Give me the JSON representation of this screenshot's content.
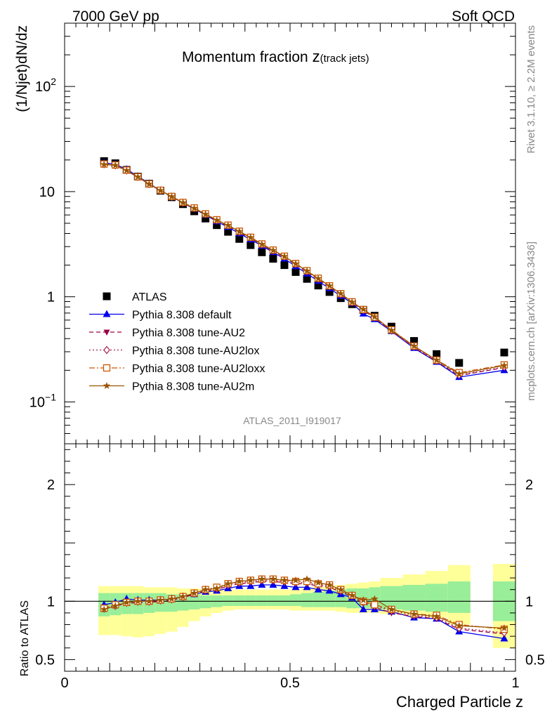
{
  "header": {
    "left": "7000 GeV pp",
    "right": "Soft QCD"
  },
  "side_labels": {
    "rivet": "Rivet 3.1.10, ≥ 2.2M events",
    "mcplots": "mcplots.cern.ch [arXiv:1306.3436]"
  },
  "chart_data": [
    {
      "type": "line",
      "title_main": "Momentum fraction ",
      "title_sym": "z",
      "title_sub": "(track jets)",
      "ylabel": "(1/Njet)dN/dz",
      "watermark": "ATLAS_2011_I919017",
      "yscale": "log",
      "ylim": [
        0.04,
        400
      ],
      "xlim": [
        0,
        1
      ],
      "grid": false,
      "legend_position": "lower-left",
      "y_ticks": [
        {
          "value": 100,
          "label": "10",
          "sup": "2"
        },
        {
          "value": 10,
          "label": "10",
          "sup": ""
        },
        {
          "value": 1,
          "label": "1",
          "sup": ""
        },
        {
          "value": 0.1,
          "label": "10",
          "sup": "−1"
        }
      ],
      "x": [
        0.0875,
        0.1125,
        0.1375,
        0.1625,
        0.1875,
        0.2125,
        0.2375,
        0.2625,
        0.2875,
        0.3125,
        0.3375,
        0.3625,
        0.3875,
        0.4125,
        0.4375,
        0.4625,
        0.4875,
        0.5125,
        0.5375,
        0.5625,
        0.5875,
        0.6125,
        0.6375,
        0.6625,
        0.6875,
        0.725,
        0.775,
        0.825,
        0.875,
        0.975
      ],
      "series": [
        {
          "name": "ATLAS",
          "color": "#000000",
          "marker": "square",
          "style": "none",
          "values": [
            19.5,
            18.6,
            16.1,
            13.9,
            11.9,
            10.2,
            8.85,
            7.6,
            6.5,
            5.55,
            4.8,
            4.15,
            3.55,
            3.1,
            2.65,
            2.3,
            2.0,
            1.72,
            1.48,
            1.28,
            1.11,
            0.97,
            0.85,
            0.75,
            0.66,
            0.52,
            0.38,
            0.285,
            0.235,
            0.295
          ]
        },
        {
          "name": "Pythia 8.308 default",
          "color": "#0000ee",
          "marker": "triangle-up",
          "style": "solid",
          "values": [
            18.8,
            18.2,
            16.3,
            14.0,
            11.95,
            10.25,
            8.95,
            7.8,
            6.85,
            6.0,
            5.2,
            4.6,
            4.0,
            3.5,
            3.05,
            2.65,
            2.3,
            1.95,
            1.66,
            1.41,
            1.2,
            1.02,
            0.87,
            0.69,
            0.61,
            0.47,
            0.325,
            0.24,
            0.172,
            0.2
          ]
        },
        {
          "name": "Pythia 8.308 tune-AU2",
          "color": "#990044",
          "marker": "triangle-down",
          "style": "dashed",
          "values": [
            18.0,
            17.7,
            15.8,
            13.7,
            11.75,
            10.2,
            8.9,
            7.8,
            6.9,
            6.05,
            5.3,
            4.7,
            4.1,
            3.6,
            3.12,
            2.72,
            2.37,
            2.02,
            1.72,
            1.46,
            1.24,
            1.05,
            0.88,
            0.74,
            0.63,
            0.47,
            0.33,
            0.242,
            0.178,
            0.212
          ]
        },
        {
          "name": "Pythia 8.308 tune-AU2lox",
          "color": "#aa2255",
          "marker": "diamond",
          "style": "dotted",
          "values": [
            18.2,
            17.8,
            15.9,
            13.8,
            11.8,
            10.25,
            8.95,
            7.85,
            6.95,
            6.1,
            5.35,
            4.75,
            4.15,
            3.65,
            3.15,
            2.75,
            2.4,
            2.05,
            1.75,
            1.48,
            1.26,
            1.06,
            0.89,
            0.75,
            0.635,
            0.48,
            0.335,
            0.245,
            0.18,
            0.215
          ]
        },
        {
          "name": "Pythia 8.308 tune-AU2loxx",
          "color": "#cc5500",
          "marker": "square-open",
          "style": "dashdot",
          "values": [
            18.3,
            17.9,
            16.0,
            13.85,
            11.85,
            10.3,
            9.0,
            7.9,
            7.0,
            6.15,
            5.4,
            4.8,
            4.2,
            3.68,
            3.18,
            2.78,
            2.43,
            2.07,
            1.77,
            1.5,
            1.27,
            1.07,
            0.895,
            0.755,
            0.64,
            0.485,
            0.34,
            0.25,
            0.19,
            0.225
          ]
        },
        {
          "name": "Pythia 8.308 tune-AU2m",
          "color": "#995500",
          "marker": "star",
          "style": "solid",
          "values": [
            18.1,
            17.8,
            15.9,
            13.8,
            11.8,
            10.25,
            8.95,
            7.85,
            6.95,
            6.1,
            5.35,
            4.78,
            4.18,
            3.66,
            3.16,
            2.76,
            2.42,
            2.06,
            1.76,
            1.49,
            1.27,
            1.07,
            0.89,
            0.76,
            0.645,
            0.48,
            0.34,
            0.25,
            0.185,
            0.222
          ]
        }
      ]
    },
    {
      "type": "line",
      "ylabel": "Ratio to ATLAS",
      "xlabel": "Charged Particle z",
      "ylim": [
        0.4,
        2.35
      ],
      "xlim": [
        0,
        1
      ],
      "y_ticks": [
        {
          "value": 2,
          "label": "2"
        },
        {
          "value": 1,
          "label": "1"
        },
        {
          "value": 0.5,
          "label": "0.5"
        }
      ],
      "x_ticks": [
        {
          "value": 0,
          "label": "0"
        },
        {
          "value": 0.5,
          "label": "0.5"
        },
        {
          "value": 1,
          "label": "1"
        }
      ],
      "band_edges": [
        0.075,
        0.1,
        0.125,
        0.15,
        0.175,
        0.2,
        0.225,
        0.25,
        0.275,
        0.3,
        0.325,
        0.35,
        0.375,
        0.4,
        0.425,
        0.45,
        0.475,
        0.5,
        0.525,
        0.55,
        0.575,
        0.6,
        0.625,
        0.65,
        0.675,
        0.7,
        0.75,
        0.8,
        0.85,
        0.9,
        0.95,
        1.0
      ],
      "band_yellow_low": [
        0.71,
        0.71,
        0.7,
        0.69,
        0.7,
        0.72,
        0.74,
        0.78,
        0.83,
        0.87,
        0.9,
        0.92,
        0.93,
        0.93,
        0.93,
        0.93,
        0.93,
        0.92,
        0.92,
        0.92,
        0.92,
        0.91,
        0.9,
        0.9,
        0.9,
        0.89,
        0.88,
        0.86,
        0.8,
        null,
        0.6
      ],
      "band_yellow_high": [
        1.13,
        1.13,
        1.13,
        1.13,
        1.12,
        1.12,
        1.12,
        1.11,
        1.11,
        1.1,
        1.1,
        1.1,
        1.1,
        1.1,
        1.1,
        1.1,
        1.1,
        1.1,
        1.11,
        1.12,
        1.13,
        1.14,
        1.15,
        1.16,
        1.17,
        1.2,
        1.23,
        1.26,
        1.31,
        null,
        1.32
      ],
      "band_green_low": [
        0.87,
        0.88,
        0.89,
        0.89,
        0.9,
        0.91,
        0.91,
        0.92,
        0.93,
        0.94,
        0.95,
        0.96,
        0.96,
        0.96,
        0.96,
        0.96,
        0.96,
        0.96,
        0.95,
        0.95,
        0.95,
        0.95,
        0.94,
        0.94,
        0.94,
        0.93,
        0.92,
        0.91,
        0.9,
        null,
        0.83
      ],
      "band_green_high": [
        1.07,
        1.07,
        1.07,
        1.07,
        1.07,
        1.07,
        1.06,
        1.06,
        1.06,
        1.05,
        1.05,
        1.05,
        1.05,
        1.05,
        1.05,
        1.05,
        1.05,
        1.06,
        1.07,
        1.08,
        1.09,
        1.1,
        1.11,
        1.11,
        1.12,
        1.13,
        1.14,
        1.15,
        1.17,
        null,
        1.17
      ],
      "x": [
        0.0875,
        0.1125,
        0.1375,
        0.1625,
        0.1875,
        0.2125,
        0.2375,
        0.2625,
        0.2875,
        0.3125,
        0.3375,
        0.3625,
        0.3875,
        0.4125,
        0.4375,
        0.4625,
        0.4875,
        0.5125,
        0.5375,
        0.5625,
        0.5875,
        0.6125,
        0.6375,
        0.6625,
        0.6875,
        0.725,
        0.775,
        0.825,
        0.875,
        0.975
      ],
      "series": [
        {
          "name": "Pythia 8.308 default",
          "color": "#0000ee",
          "marker": "triangle-up",
          "style": "solid",
          "values": [
            0.97,
            0.99,
            1.02,
            1.01,
            1.01,
            1.01,
            1.02,
            1.04,
            1.06,
            1.08,
            1.09,
            1.11,
            1.13,
            1.13,
            1.14,
            1.14,
            1.13,
            1.12,
            1.12,
            1.1,
            1.09,
            1.06,
            1.03,
            0.93,
            0.93,
            0.91,
            0.86,
            0.85,
            0.74,
            0.68
          ]
        },
        {
          "name": "Pythia 8.308 tune-AU2",
          "color": "#990044",
          "marker": "triangle-down",
          "style": "dashed",
          "values": [
            0.93,
            0.96,
            0.98,
            0.99,
            0.99,
            1.0,
            1.01,
            1.03,
            1.06,
            1.09,
            1.1,
            1.13,
            1.15,
            1.16,
            1.17,
            1.17,
            1.16,
            1.15,
            1.15,
            1.13,
            1.12,
            1.08,
            1.04,
            0.98,
            0.95,
            0.9,
            0.87,
            0.85,
            0.76,
            0.72
          ]
        },
        {
          "name": "Pythia 8.308 tune-AU2lox",
          "color": "#aa2255",
          "marker": "diamond",
          "style": "dotted",
          "values": [
            0.94,
            0.96,
            0.99,
            1.0,
            1.0,
            1.01,
            1.02,
            1.04,
            1.07,
            1.1,
            1.11,
            1.14,
            1.16,
            1.17,
            1.18,
            1.18,
            1.17,
            1.16,
            1.16,
            1.14,
            1.13,
            1.09,
            1.05,
            0.99,
            0.96,
            0.92,
            0.88,
            0.86,
            0.77,
            0.73
          ]
        },
        {
          "name": "Pythia 8.308 tune-AU2loxx",
          "color": "#cc5500",
          "marker": "square-open",
          "style": "dashdot",
          "values": [
            0.94,
            0.97,
            0.99,
            1.0,
            1.0,
            1.01,
            1.02,
            1.04,
            1.07,
            1.1,
            1.12,
            1.15,
            1.17,
            1.18,
            1.19,
            1.19,
            1.18,
            1.17,
            1.17,
            1.15,
            1.14,
            1.1,
            1.05,
            1.0,
            0.97,
            0.93,
            0.89,
            0.88,
            0.8,
            0.76
          ]
        },
        {
          "name": "Pythia 8.308 tune-AU2m",
          "color": "#995500",
          "marker": "star",
          "style": "solid",
          "values": [
            0.93,
            0.96,
            0.99,
            1.0,
            1.0,
            1.01,
            1.02,
            1.04,
            1.07,
            1.1,
            1.11,
            1.15,
            1.17,
            1.18,
            1.19,
            1.19,
            1.18,
            1.18,
            1.19,
            1.16,
            1.14,
            1.1,
            1.05,
            1.01,
            1.02,
            0.93,
            0.89,
            0.87,
            0.79,
            0.77
          ]
        }
      ]
    }
  ]
}
